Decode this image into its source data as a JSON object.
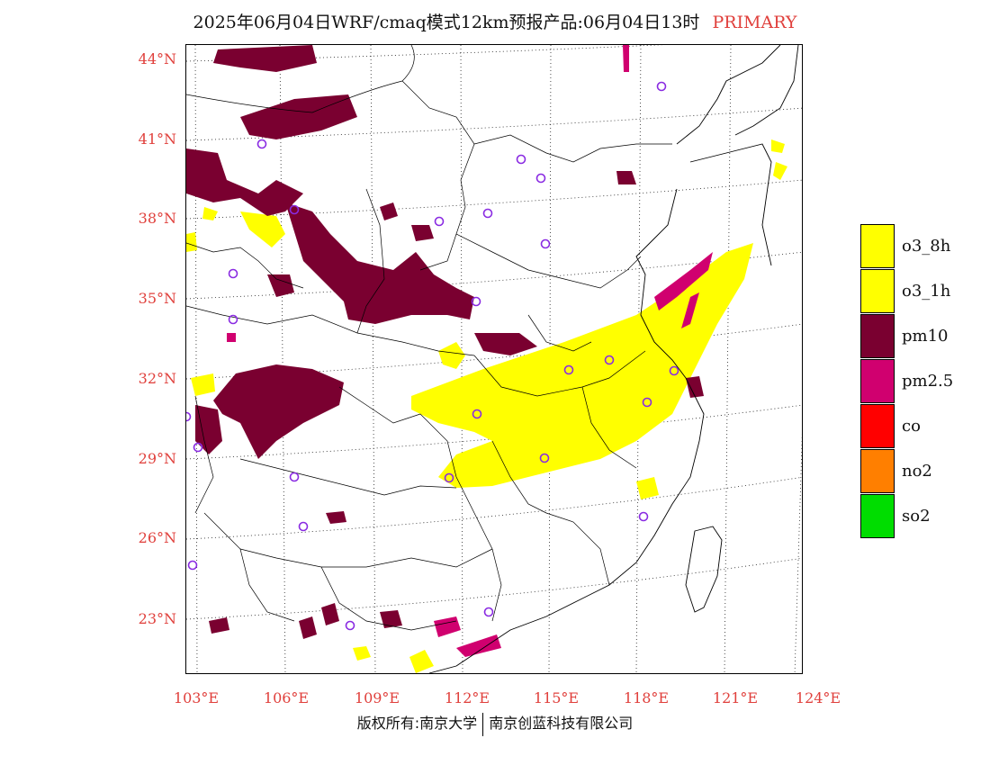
{
  "title": {
    "main": "2025年06月04日WRF/cmaq模式12km预报产品:06月04日13时",
    "tag": "PRIMARY"
  },
  "colors": {
    "o3_8h": "#ffff00",
    "o3_1h": "#ffff00",
    "pm10": "#7a0030",
    "pm2_5": "#d0006f",
    "co": "#ff0000",
    "no2": "#ff7f00",
    "so2": "#00dd00",
    "station_marker": "#8a2be2",
    "axis_label": "#e0403c"
  },
  "latitude_labels": [
    "44°N",
    "41°N",
    "38°N",
    "35°N",
    "32°N",
    "29°N",
    "26°N",
    "23°N"
  ],
  "longitude_labels": [
    "103°E",
    "106°E",
    "109°E",
    "112°E",
    "115°E",
    "118°E",
    "121°E",
    "124°E"
  ],
  "legend": [
    {
      "key": "o3_8h",
      "label": "o3_8h"
    },
    {
      "key": "o3_1h",
      "label": "o3_1h"
    },
    {
      "key": "pm10",
      "label": "pm10"
    },
    {
      "key": "pm2_5",
      "label": "pm2.5"
    },
    {
      "key": "co",
      "label": "co"
    },
    {
      "key": "no2",
      "label": "no2"
    },
    {
      "key": "so2",
      "label": "so2"
    }
  ],
  "copyright": {
    "left": "版权所有:南京大学",
    "right": "南京创蓝科技有限公司"
  }
}
